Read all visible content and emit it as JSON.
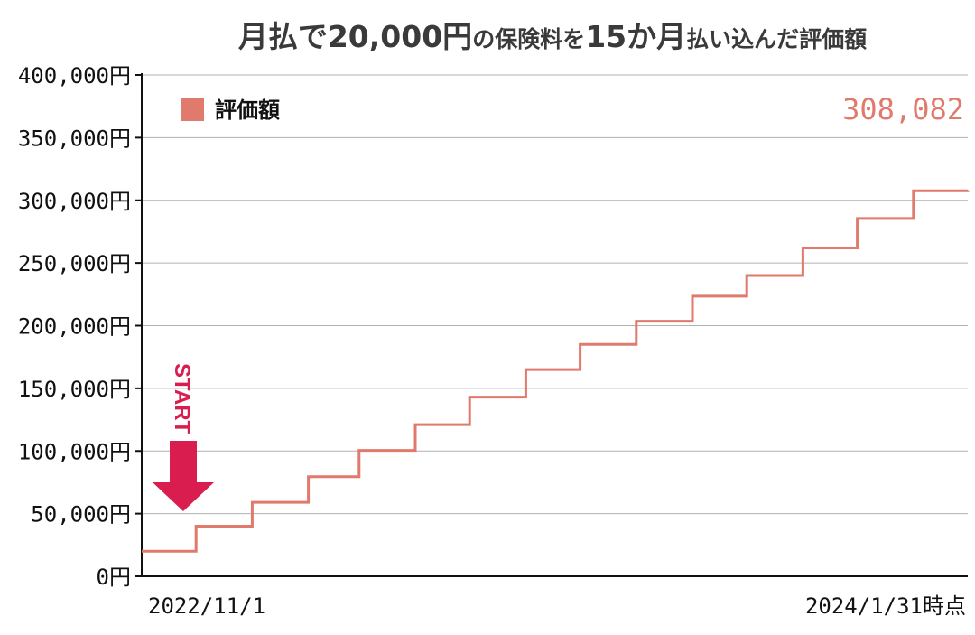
{
  "chart_data": {
    "type": "line",
    "title_parts": [
      {
        "text": "月払で20,000円",
        "size": "big"
      },
      {
        "text": "の保険料を",
        "size": "small"
      },
      {
        "text": "15か月",
        "size": "big"
      },
      {
        "text": "払い込んだ評価額",
        "size": "small"
      }
    ],
    "ylim": [
      0,
      400000
    ],
    "yticks": [
      0,
      50000,
      100000,
      150000,
      200000,
      250000,
      300000,
      350000,
      400000
    ],
    "ytick_labels": [
      "0円",
      "50,000円",
      "100,000円",
      "150,000円",
      "200,000円",
      "250,000円",
      "300,000円",
      "350,000円",
      "400,000円"
    ],
    "x_start_label": "2022/11/1",
    "x_end_label": "2024/1/31時点",
    "grid": true,
    "legend_position": "top-left",
    "series": [
      {
        "name": "評価額",
        "color": "#e07a6c",
        "x": [
          "2022-11-01",
          "2022-12-01",
          "2023-01-01",
          "2023-02-01",
          "2023-03-01",
          "2023-04-01",
          "2023-05-01",
          "2023-06-01",
          "2023-07-01",
          "2023-08-01",
          "2023-09-01",
          "2023-10-01",
          "2023-11-01",
          "2023-12-01",
          "2024-01-01",
          "2024-01-31"
        ],
        "y": [
          20000,
          40000,
          59000,
          79500,
          100500,
          121000,
          143000,
          165000,
          185000,
          203500,
          223500,
          240000,
          262000,
          285500,
          307500,
          308082
        ]
      }
    ],
    "final_value_label": "308,082",
    "annotation": "START",
    "annotation_color": "#d91d4f"
  }
}
